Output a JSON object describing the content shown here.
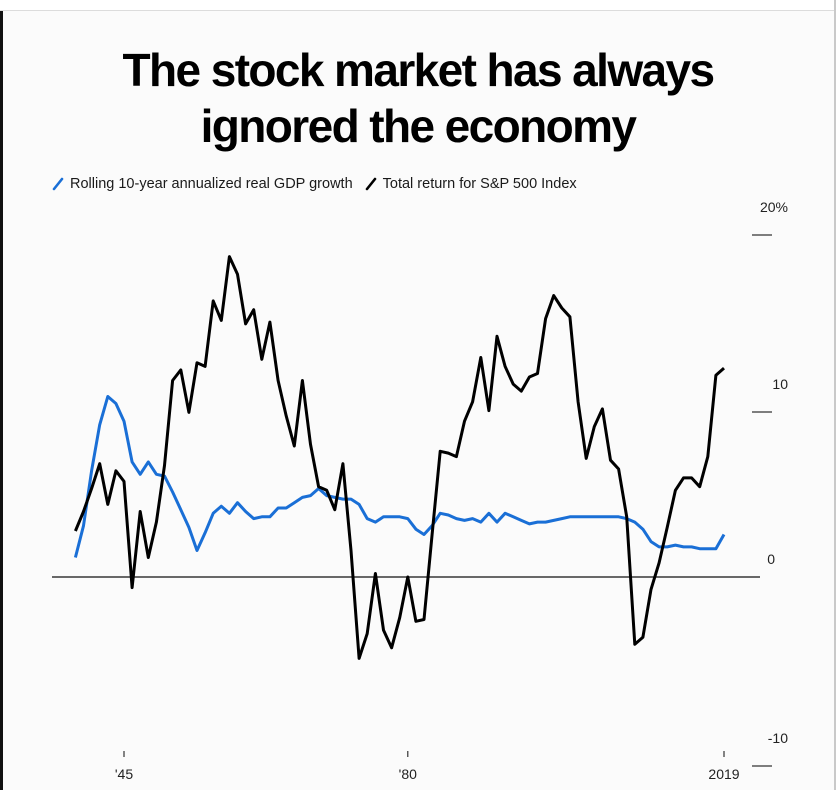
{
  "title_line1": "The stock market has always",
  "title_line2": "ignored the economy",
  "legend": [
    {
      "label": "Rolling 10-year annualized real GDP growth",
      "color": "#1a6fd6"
    },
    {
      "label": "Total return for S&P 500 Index",
      "color": "#000000"
    }
  ],
  "y_axis": {
    "ticks": [
      {
        "value": 20,
        "label": "20%"
      },
      {
        "value": 10,
        "label": "10"
      },
      {
        "value": 0,
        "label": "0"
      },
      {
        "value": -10,
        "label": "-10"
      }
    ]
  },
  "x_axis": {
    "ticks": [
      {
        "year": 1945,
        "label": "'45"
      },
      {
        "year": 1980,
        "label": "'80"
      },
      {
        "year": 2019,
        "label": "2019"
      }
    ]
  },
  "chart_data": {
    "type": "line",
    "title": "The stock market has always ignored the economy",
    "xlabel": "",
    "ylabel": "%",
    "ylim": [
      -10,
      20
    ],
    "xlim": [
      1939,
      2019
    ],
    "grid": false,
    "legend_position": "top-left",
    "x": [
      1939,
      1940,
      1941,
      1942,
      1943,
      1944,
      1945,
      1946,
      1947,
      1948,
      1949,
      1950,
      1951,
      1952,
      1953,
      1954,
      1955,
      1956,
      1957,
      1958,
      1959,
      1960,
      1961,
      1962,
      1963,
      1964,
      1965,
      1966,
      1967,
      1968,
      1969,
      1970,
      1971,
      1972,
      1973,
      1974,
      1975,
      1976,
      1977,
      1978,
      1979,
      1980,
      1981,
      1982,
      1983,
      1984,
      1985,
      1986,
      1987,
      1988,
      1989,
      1990,
      1991,
      1992,
      1993,
      1994,
      1995,
      1996,
      1997,
      1998,
      1999,
      2000,
      2001,
      2002,
      2003,
      2004,
      2005,
      2006,
      2007,
      2008,
      2009,
      2010,
      2011,
      2012,
      2013,
      2014,
      2015,
      2016,
      2017,
      2018,
      2019
    ],
    "series": [
      {
        "name": "Rolling 10-year annualized real GDP growth",
        "color": "#1a6fd6",
        "values": [
          1.1,
          2.9,
          6.0,
          8.6,
          10.2,
          9.8,
          8.8,
          6.5,
          5.8,
          6.5,
          5.8,
          5.7,
          4.8,
          3.8,
          2.8,
          1.5,
          2.5,
          3.6,
          4.0,
          3.6,
          4.2,
          3.7,
          3.3,
          3.4,
          3.4,
          3.9,
          3.9,
          4.2,
          4.5,
          4.6,
          5.0,
          4.6,
          4.5,
          4.4,
          4.4,
          4.1,
          3.3,
          3.1,
          3.4,
          3.4,
          3.4,
          3.3,
          2.7,
          2.4,
          2.9,
          3.6,
          3.5,
          3.3,
          3.2,
          3.3,
          3.1,
          3.6,
          3.1,
          3.6,
          3.4,
          3.2,
          3.0,
          3.1,
          3.1,
          3.2,
          3.3,
          3.4,
          3.4,
          3.4,
          3.4,
          3.4,
          3.4,
          3.4,
          3.3,
          3.1,
          2.7,
          2.0,
          1.7,
          1.7,
          1.8,
          1.7,
          1.7,
          1.6,
          1.6,
          1.6,
          2.4
        ]
      },
      {
        "name": "Total return for S&P 500 Index",
        "color": "#000000",
        "values": [
          2.6,
          3.7,
          5.0,
          6.4,
          4.1,
          6.0,
          5.4,
          -0.6,
          3.7,
          1.1,
          3.1,
          6.3,
          11.1,
          11.7,
          9.3,
          12.1,
          11.9,
          15.6,
          14.5,
          18.1,
          17.1,
          14.3,
          15.1,
          12.3,
          14.4,
          11.1,
          9.1,
          7.4,
          11.1,
          7.5,
          5.1,
          4.9,
          3.8,
          6.4,
          1.5,
          -4.6,
          -3.2,
          0.2,
          -3.0,
          -4.0,
          -2.3,
          0.0,
          -2.5,
          -2.4,
          2.4,
          7.1,
          7.0,
          6.8,
          8.8,
          9.9,
          12.4,
          9.4,
          13.6,
          11.9,
          10.9,
          10.5,
          11.3,
          11.5,
          14.6,
          15.9,
          15.2,
          14.7,
          9.9,
          6.7,
          8.5,
          9.5,
          6.6,
          6.1,
          3.4,
          -3.8,
          -3.4,
          -0.7,
          0.8,
          2.8,
          4.9,
          5.6,
          5.6,
          5.1,
          6.8,
          11.4,
          11.8
        ]
      }
    ]
  }
}
